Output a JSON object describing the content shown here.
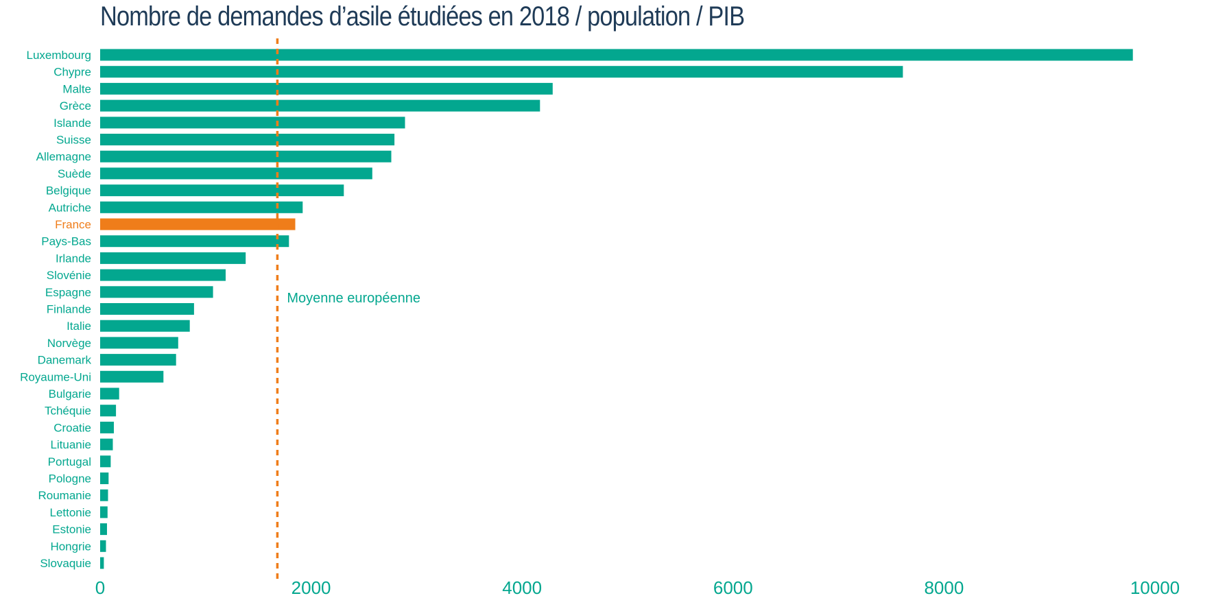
{
  "chart_data": {
    "type": "bar",
    "orientation": "horizontal",
    "title": "Nombre de demandes d’asile étudiées en 2018 / population / PIB",
    "xlabel": "",
    "ylabel": "",
    "xlim": [
      0,
      10000
    ],
    "x_ticks": [
      "0",
      "2000",
      "4000",
      "6000",
      "8000",
      "10000"
    ],
    "grid": false,
    "legend": "none",
    "categories": [
      "Luxembourg",
      "Chypre",
      "Malte",
      "Grèce",
      "Islande",
      "Suisse",
      "Allemagne",
      "Suède",
      "Belgique",
      "Autriche",
      "France",
      "Pays-Bas",
      "Irlande",
      "Slovénie",
      "Espagne",
      "Finlande",
      "Italie",
      "Norvège",
      "Danemark",
      "Royaume-Uni",
      "Bulgarie",
      "Tchéquie",
      "Croatie",
      "Lituanie",
      "Portugal",
      "Pologne",
      "Roumanie",
      "Lettonie",
      "Estonie",
      "Hongrie",
      "Slovaquie"
    ],
    "values": [
      9790,
      7610,
      4290,
      4170,
      2890,
      2790,
      2760,
      2580,
      2310,
      1920,
      1850,
      1790,
      1380,
      1190,
      1070,
      890,
      850,
      740,
      720,
      600,
      180,
      150,
      130,
      120,
      100,
      80,
      75,
      70,
      65,
      55,
      35
    ],
    "highlight": "France",
    "reference_line": {
      "label": "Moyenne européenne",
      "value": 1680,
      "style": "dashed"
    },
    "colors": {
      "bar": "#03a78f",
      "highlight": "#ef7d1a",
      "reference_line": "#ef7d1a",
      "tick_label": "#03a78f",
      "title": "#1f3b57",
      "annotation": "#03a78f"
    }
  }
}
